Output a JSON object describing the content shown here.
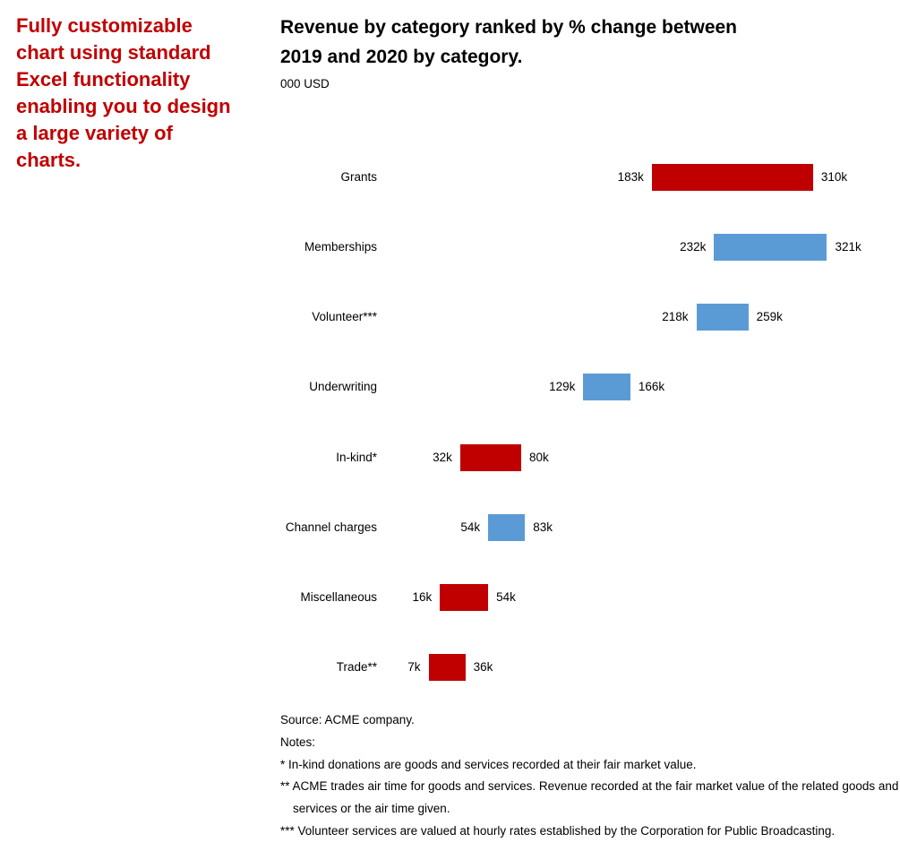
{
  "intro_note": {
    "color": "#C00000",
    "text": "Fully customizable chart using standard Excel functionality enabling you to design a large variety of charts.",
    "lines": [
      "Fully customizable",
      "chart using standard",
      "Excel functionality",
      "enabling you to design",
      "a large variety of",
      "charts."
    ]
  },
  "chart_data": {
    "type": "bar",
    "subtype": "horizontal-range-bar",
    "title": "Revenue by category ranked by % change between 2019 and 2020 by category.",
    "title_lines": [
      "Revenue by category ranked by % change between",
      "2019 and 2020 by category."
    ],
    "unit_label": "000 USD",
    "xlabel": "",
    "ylabel": "",
    "legend": "none",
    "gridlines": false,
    "axis_range_thousands": [
      0,
      380
    ],
    "palette": {
      "red": "#C00000",
      "blue": "#5B9BD5"
    },
    "categories": [
      "Grants",
      "Memberships",
      "Volunteer***",
      "Underwriting",
      "In-kind*",
      "Channel charges",
      "Miscellaneous",
      "Trade**"
    ],
    "rows": [
      {
        "category": "Grants",
        "from": 183,
        "to": 310,
        "from_label": "183k",
        "to_label": "310k",
        "color": "red"
      },
      {
        "category": "Memberships",
        "from": 232,
        "to": 321,
        "from_label": "232k",
        "to_label": "321k",
        "color": "blue"
      },
      {
        "category": "Volunteer***",
        "from": 218,
        "to": 259,
        "from_label": "218k",
        "to_label": "259k",
        "color": "blue"
      },
      {
        "category": "Underwriting",
        "from": 129,
        "to": 166,
        "from_label": "129k",
        "to_label": "166k",
        "color": "blue"
      },
      {
        "category": "In-kind*",
        "from": 32,
        "to": 80,
        "from_label": "32k",
        "to_label": "80k",
        "color": "red"
      },
      {
        "category": "Channel charges",
        "from": 54,
        "to": 83,
        "from_label": "54k",
        "to_label": "83k",
        "color": "blue"
      },
      {
        "category": "Miscellaneous",
        "from": 16,
        "to": 54,
        "from_label": "16k",
        "to_label": "54k",
        "color": "red"
      },
      {
        "category": "Trade**",
        "from": 7,
        "to": 36,
        "from_label": "7k",
        "to_label": "36k",
        "color": "red"
      }
    ]
  },
  "footer": {
    "lines": [
      "Source: ACME company.",
      "Notes:",
      "* In-kind donations are goods and services recorded at their fair market value.",
      "** ACME trades air time for goods and services. Revenue recorded at the fair market value of the related goods and services or the air time given.",
      "*** Volunteer services are valued at hourly rates established by the Corporation for Public Broadcasting."
    ]
  }
}
